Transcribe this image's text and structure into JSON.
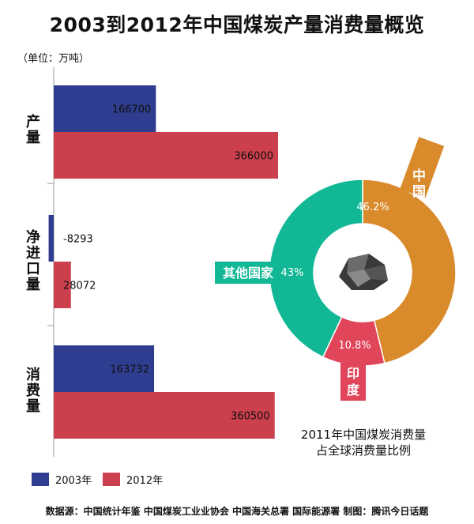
{
  "title": "2003到2012年中国煤炭产量消费量概览",
  "unit": "（单位：万吨）",
  "legend": [
    {
      "label": "2003年",
      "color": "#2e3d8f"
    },
    {
      "label": "2012年",
      "color": "#cc3f4d"
    }
  ],
  "source": "数据源：中国统计年鉴  中国煤炭工业业协会  中国海关总署  国际能源署     制图：腾讯今日话题",
  "pie_caption": [
    "2011年中国煤炭消费量",
    "占全球消费量比例"
  ],
  "chart_data": [
    {
      "type": "bar",
      "orientation": "horizontal",
      "categories": [
        "产量",
        "净进口量",
        "消费量"
      ],
      "series": [
        {
          "name": "2003年",
          "color": "#2e3d8f",
          "values": [
            166700,
            -8293,
            163732
          ],
          "labels": [
            "166700",
            "-8293",
            "163732"
          ]
        },
        {
          "name": "2012年",
          "color": "#cc3f4d",
          "values": [
            366000,
            28072,
            360500
          ],
          "labels": [
            "366000",
            "28072",
            "360500"
          ]
        }
      ],
      "xlim": [
        -10000,
        370000
      ],
      "grid": false
    },
    {
      "type": "pie",
      "style": "donut",
      "slices": [
        {
          "label": "中国",
          "value": 46.2,
          "value_label": "46.2%",
          "color": "#d98a2b"
        },
        {
          "label": "印度",
          "value": 10.8,
          "value_label": "10.8%",
          "color": "#e0455a"
        },
        {
          "label": "其他国家",
          "value": 43,
          "value_label": "43%",
          "color": "#12b896"
        }
      ]
    }
  ]
}
